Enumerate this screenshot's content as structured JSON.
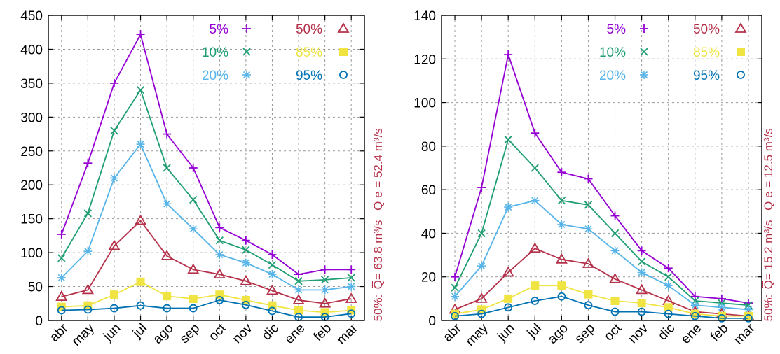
{
  "chart_data": [
    {
      "type": "line",
      "categories": [
        "abr",
        "may",
        "jun",
        "jul",
        "ago",
        "sep",
        "oct",
        "nov",
        "dic",
        "ene",
        "feb",
        "mar"
      ],
      "ylim": [
        0,
        450
      ],
      "ytick_step": 50,
      "grid": true,
      "legend_position": "top-right",
      "side_labels": {
        "mean": "Q̅= 63.8 m³/s",
        "q50_prefix": "50%:",
        "qe": "Q e = 52.4 m³/s"
      },
      "series": [
        {
          "name": "5%",
          "color": "#9400d3",
          "marker": "none",
          "values": [
            127,
            232,
            350,
            422,
            275,
            225,
            137,
            118,
            97,
            68,
            75,
            75
          ]
        },
        {
          "name": "10%",
          "color": "#1f9e74",
          "marker": "none",
          "values": [
            92,
            158,
            280,
            340,
            225,
            178,
            118,
            104,
            82,
            58,
            60,
            63
          ]
        },
        {
          "name": "20%",
          "color": "#56b4e9",
          "marker": "none",
          "values": [
            63,
            102,
            210,
            260,
            172,
            135,
            97,
            85,
            68,
            45,
            45,
            50
          ]
        },
        {
          "name": "50%",
          "color": "#b5314a",
          "marker": "triangle",
          "values": [
            35,
            45,
            110,
            147,
            95,
            75,
            68,
            58,
            44,
            30,
            25,
            32
          ]
        },
        {
          "name": "85%",
          "color": "#f0e442",
          "marker": "square",
          "values": [
            20,
            22,
            38,
            57,
            36,
            32,
            38,
            30,
            22,
            15,
            12,
            15
          ]
        },
        {
          "name": "95%",
          "color": "#0072b2",
          "marker": "circle",
          "values": [
            15,
            16,
            18,
            22,
            18,
            18,
            30,
            23,
            14,
            5,
            5,
            10
          ]
        }
      ]
    },
    {
      "type": "line",
      "categories": [
        "abr",
        "may",
        "jun",
        "jul",
        "ago",
        "sep",
        "oct",
        "nov",
        "dic",
        "ene",
        "feb",
        "mar"
      ],
      "ylim": [
        0,
        140
      ],
      "ytick_step": 20,
      "grid": true,
      "legend_position": "top-right",
      "side_labels": {
        "mean": "Q̅= 15.2 m³/s",
        "q50_prefix": "50%:",
        "qe": "Q e = 12.5 m³/s"
      },
      "series": [
        {
          "name": "5%",
          "color": "#9400d3",
          "marker": "none",
          "values": [
            20,
            61,
            122,
            86,
            68,
            65,
            48,
            32,
            24,
            11,
            10,
            8
          ]
        },
        {
          "name": "10%",
          "color": "#1f9e74",
          "marker": "none",
          "values": [
            15,
            40,
            83,
            70,
            55,
            53,
            40,
            27,
            20,
            9,
            8,
            7
          ]
        },
        {
          "name": "20%",
          "color": "#56b4e9",
          "marker": "none",
          "values": [
            11,
            25,
            52,
            55,
            44,
            42,
            32,
            22,
            16,
            7,
            6,
            5
          ]
        },
        {
          "name": "50%",
          "color": "#b5314a",
          "marker": "triangle",
          "values": [
            5,
            10,
            22,
            33,
            28,
            26,
            19,
            14,
            9,
            4,
            3,
            2
          ]
        },
        {
          "name": "85%",
          "color": "#f0e442",
          "marker": "square",
          "values": [
            3,
            5,
            10,
            16,
            16,
            12,
            9,
            8,
            6,
            3,
            2,
            2
          ]
        },
        {
          "name": "95%",
          "color": "#0072b2",
          "marker": "circle",
          "values": [
            2,
            3,
            6,
            9,
            11,
            7,
            4,
            4,
            3,
            2,
            1,
            1
          ]
        }
      ]
    }
  ]
}
